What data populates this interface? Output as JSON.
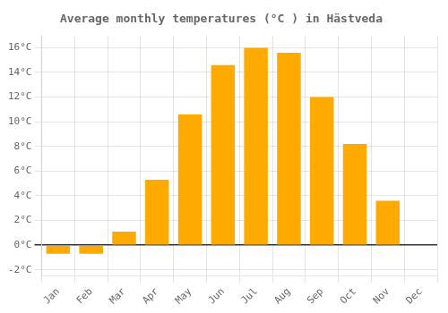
{
  "chart_data": {
    "type": "bar",
    "title": "Average monthly temperatures (°C ) in Hästveda",
    "categories": [
      "Jan",
      "Feb",
      "Mar",
      "Apr",
      "May",
      "Jun",
      "Jul",
      "Aug",
      "Sep",
      "Oct",
      "Nov",
      "Dec"
    ],
    "values": [
      -0.7,
      -0.7,
      1.1,
      5.3,
      10.6,
      14.6,
      16.0,
      15.6,
      12.0,
      8.2,
      3.6,
      0.0
    ],
    "color": "#FFAA00",
    "ylim": [
      -2.5,
      17.0
    ],
    "yticks": [
      {
        "value": -2,
        "label": "-2°C"
      },
      {
        "value": 0,
        "label": "0°C"
      },
      {
        "value": 2,
        "label": "2°C"
      },
      {
        "value": 4,
        "label": "4°C"
      },
      {
        "value": 6,
        "label": "6°C"
      },
      {
        "value": 8,
        "label": "8°C"
      },
      {
        "value": 10,
        "label": "10°C"
      },
      {
        "value": 12,
        "label": "12°C"
      },
      {
        "value": 14,
        "label": "14°C"
      },
      {
        "value": 16,
        "label": "16°C"
      }
    ],
    "grid": true
  }
}
